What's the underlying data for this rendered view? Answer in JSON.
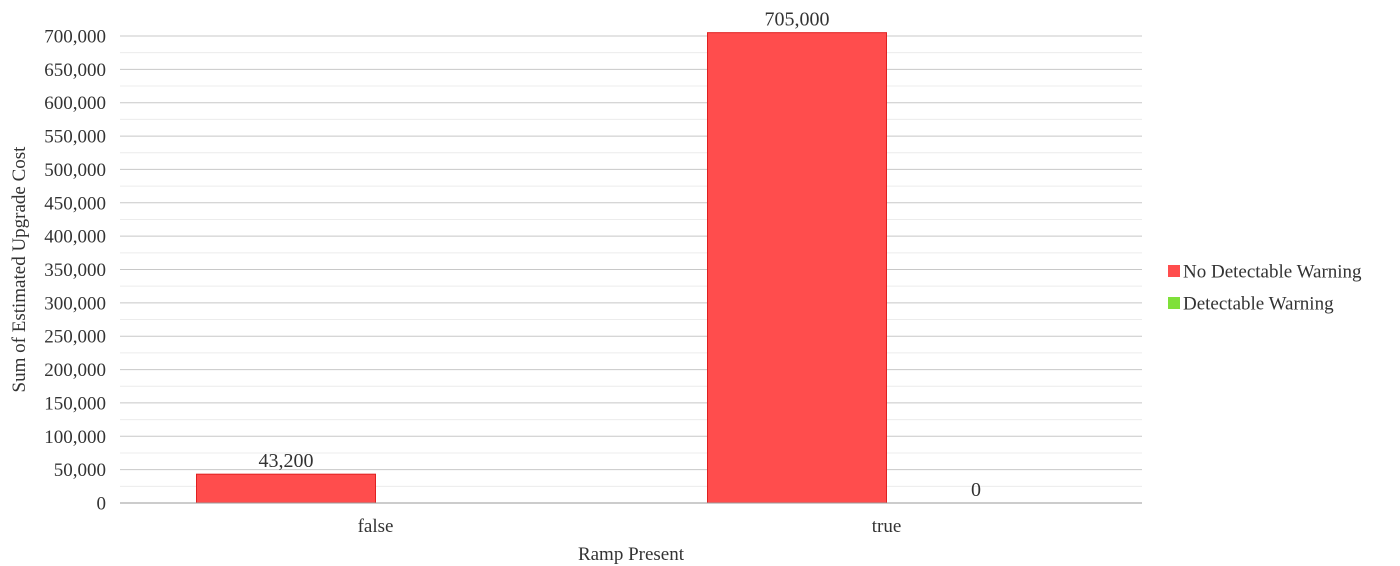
{
  "chart_data": {
    "type": "bar",
    "categories": [
      "false",
      "true"
    ],
    "series": [
      {
        "name": "No Detectable Warning",
        "color": "#ff4d4d",
        "values": [
          43200,
          705000
        ]
      },
      {
        "name": "Detectable Warning",
        "color": "#7fe03a",
        "values": [
          null,
          0
        ]
      }
    ],
    "data_labels": [
      [
        "43,200",
        "705,000"
      ],
      [
        null,
        "0"
      ]
    ],
    "xlabel": "Ramp Present",
    "ylabel": "Sum of Estimated Upgrade Cost",
    "ylim": [
      0,
      700000
    ],
    "yticks": [
      "0",
      "50,000",
      "100,000",
      "150,000",
      "200,000",
      "250,000",
      "300,000",
      "350,000",
      "400,000",
      "450,000",
      "500,000",
      "550,000",
      "600,000",
      "650,000",
      "700,000"
    ],
    "grid": true,
    "legend_position": "right"
  }
}
